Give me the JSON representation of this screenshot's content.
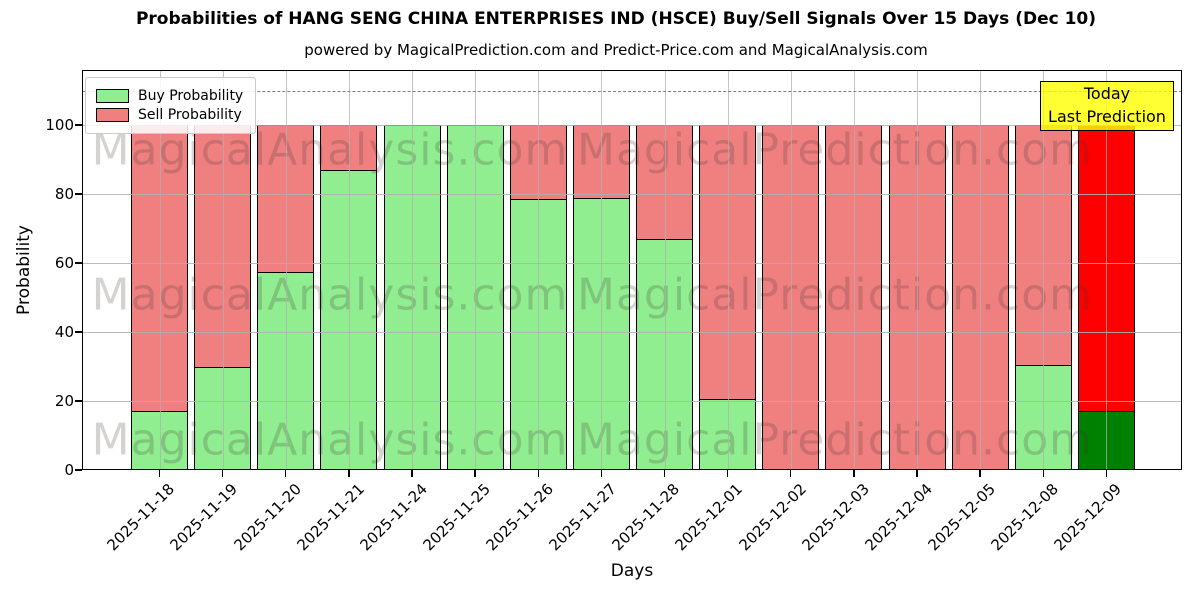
{
  "title": "Probabilities of HANG SENG CHINA ENTERPRISES IND (HSCE) Buy/Sell Signals Over 15 Days (Dec 10)",
  "subtitle": "powered by MagicalPrediction.com and Predict-Price.com and MagicalAnalysis.com",
  "legend": {
    "items": [
      {
        "label": "Buy Probability",
        "color": "#90ee90"
      },
      {
        "label": "Sell Probability",
        "color": "#f08080"
      }
    ]
  },
  "annotation_box": {
    "line1": "Today",
    "line2": "Last Prediction",
    "bg_rgba": "rgba(255,255,0,0.8)",
    "border_color": "#000000"
  },
  "watermarks": [
    "MagicalAnalysis.com",
    "MagicalPrediction.com"
  ],
  "chart_data": {
    "type": "bar",
    "stacked": true,
    "title": "Probabilities of HANG SENG CHINA ENTERPRISES IND (HSCE) Buy/Sell Signals Over 15 Days (Dec 10)",
    "xlabel": "Days",
    "ylabel": "Probability",
    "categories": [
      "2025-11-18",
      "2025-11-19",
      "2025-11-20",
      "2025-11-21",
      "2025-11-24",
      "2025-11-25",
      "2025-11-26",
      "2025-11-27",
      "2025-11-28",
      "2025-12-01",
      "2025-12-02",
      "2025-12-03",
      "2025-12-04",
      "2025-12-05",
      "2025-12-08",
      "2025-12-09"
    ],
    "series": [
      {
        "name": "Buy Probability",
        "color": "#90ee90",
        "today_color": "#008000",
        "values": [
          17,
          30,
          57.5,
          87,
          100,
          100,
          78.5,
          79,
          67,
          20.5,
          0,
          0,
          0,
          0,
          30.5,
          17
        ]
      },
      {
        "name": "Sell Probability",
        "color": "#f08080",
        "today_color": "#ff0000",
        "values": [
          83,
          70,
          42.5,
          13,
          0,
          0,
          21.5,
          21,
          33,
          79.5,
          100,
          100,
          100,
          100,
          69.5,
          83
        ]
      }
    ],
    "yticks": [
      0,
      20,
      40,
      60,
      80,
      100
    ],
    "ylim": [
      0,
      116
    ],
    "dashed_line_y": 110,
    "grid": true,
    "grid_over_bars": true,
    "legend_position": "upper left",
    "today_annotation_index": 15
  }
}
